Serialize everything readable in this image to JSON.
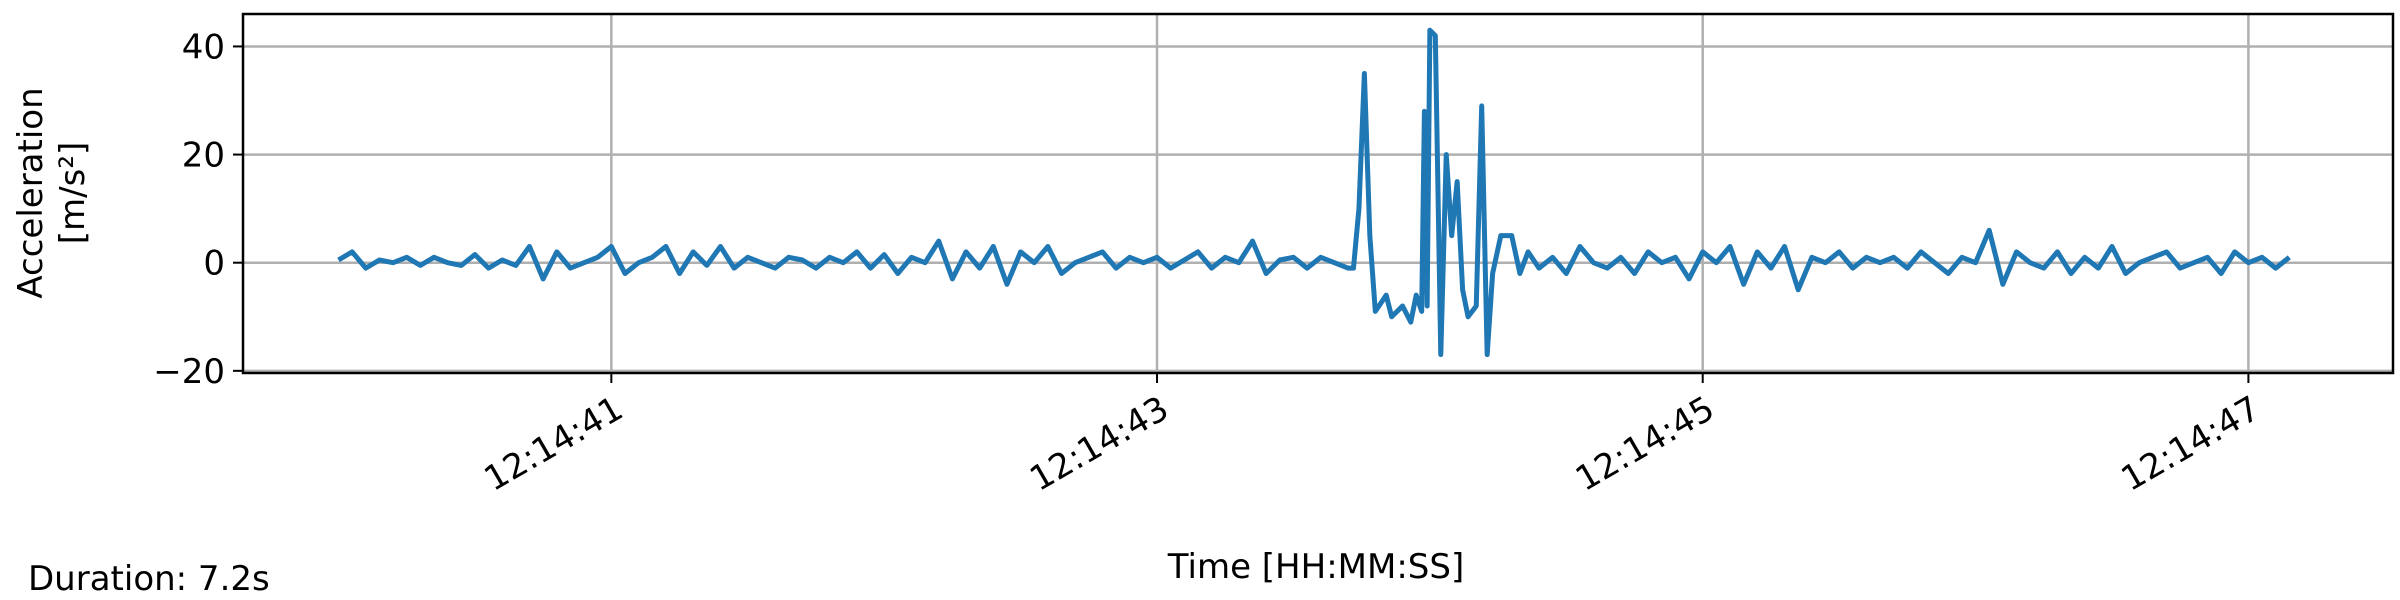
{
  "chart_data": {
    "type": "line",
    "xlabel": "Time [HH:MM:SS]",
    "ylabel_lines": [
      "Acceleration",
      "[m/s²]"
    ],
    "footer": "Duration: 7.2s",
    "color": "#1f77b4",
    "grid": true,
    "xlim": [
      "12:14:39.65",
      "12:14:47.53"
    ],
    "xticks": [
      "12:14:41",
      "12:14:43",
      "12:14:45",
      "12:14:47"
    ],
    "ylim": [
      -20.4,
      46
    ],
    "yticks": [
      {
        "value": -20,
        "label": "−20"
      },
      0,
      20,
      40
    ],
    "x": [
      "12:14:40.00",
      "12:14:40.05",
      "12:14:40.10",
      "12:14:40.15",
      "12:14:40.20",
      "12:14:40.25",
      "12:14:40.30",
      "12:14:40.35",
      "12:14:40.40",
      "12:14:40.45",
      "12:14:40.50",
      "12:14:40.55",
      "12:14:40.60",
      "12:14:40.65",
      "12:14:40.70",
      "12:14:40.75",
      "12:14:40.80",
      "12:14:40.85",
      "12:14:40.90",
      "12:14:40.95",
      "12:14:41.00",
      "12:14:41.05",
      "12:14:41.10",
      "12:14:41.15",
      "12:14:41.20",
      "12:14:41.25",
      "12:14:41.30",
      "12:14:41.35",
      "12:14:41.40",
      "12:14:41.45",
      "12:14:41.50",
      "12:14:41.55",
      "12:14:41.60",
      "12:14:41.65",
      "12:14:41.70",
      "12:14:41.75",
      "12:14:41.80",
      "12:14:41.85",
      "12:14:41.90",
      "12:14:41.95",
      "12:14:42.00",
      "12:14:42.05",
      "12:14:42.10",
      "12:14:42.15",
      "12:14:42.20",
      "12:14:42.25",
      "12:14:42.30",
      "12:14:42.35",
      "12:14:42.40",
      "12:14:42.45",
      "12:14:42.50",
      "12:14:42.55",
      "12:14:42.60",
      "12:14:42.65",
      "12:14:42.70",
      "12:14:42.75",
      "12:14:42.80",
      "12:14:42.85",
      "12:14:42.90",
      "12:14:42.95",
      "12:14:43.00",
      "12:14:43.05",
      "12:14:43.10",
      "12:14:43.15",
      "12:14:43.20",
      "12:14:43.25",
      "12:14:43.30",
      "12:14:43.35",
      "12:14:43.40",
      "12:14:43.45",
      "12:14:43.50",
      "12:14:43.55",
      "12:14:43.60",
      "12:14:43.65",
      "12:14:43.70",
      "12:14:43.72",
      "12:14:43.74",
      "12:14:43.76",
      "12:14:43.78",
      "12:14:43.80",
      "12:14:43.84",
      "12:14:43.86",
      "12:14:43.90",
      "12:14:43.93",
      "12:14:43.95",
      "12:14:43.97",
      "12:14:43.98",
      "12:14:43.99",
      "12:14:44.00",
      "12:14:44.02",
      "12:14:44.04",
      "12:14:44.06",
      "12:14:44.08",
      "12:14:44.10",
      "12:14:44.12",
      "12:14:44.14",
      "12:14:44.17",
      "12:14:44.19",
      "12:14:44.21",
      "12:14:44.23",
      "12:14:44.26",
      "12:14:44.30",
      "12:14:44.33",
      "12:14:44.36",
      "12:14:44.40",
      "12:14:44.45",
      "12:14:44.50",
      "12:14:44.55",
      "12:14:44.60",
      "12:14:44.65",
      "12:14:44.70",
      "12:14:44.75",
      "12:14:44.80",
      "12:14:44.85",
      "12:14:44.90",
      "12:14:44.95",
      "12:14:45.00",
      "12:14:45.05",
      "12:14:45.10",
      "12:14:45.15",
      "12:14:45.20",
      "12:14:45.25",
      "12:14:45.30",
      "12:14:45.35",
      "12:14:45.40",
      "12:14:45.45",
      "12:14:45.50",
      "12:14:45.55",
      "12:14:45.60",
      "12:14:45.65",
      "12:14:45.70",
      "12:14:45.75",
      "12:14:45.80",
      "12:14:45.85",
      "12:14:45.90",
      "12:14:45.95",
      "12:14:46.00",
      "12:14:46.05",
      "12:14:46.10",
      "12:14:46.15",
      "12:14:46.20",
      "12:14:46.25",
      "12:14:46.30",
      "12:14:46.35",
      "12:14:46.40",
      "12:14:46.45",
      "12:14:46.50",
      "12:14:46.55",
      "12:14:46.60",
      "12:14:46.65",
      "12:14:46.70",
      "12:14:46.75",
      "12:14:46.80",
      "12:14:46.85",
      "12:14:46.90",
      "12:14:46.95",
      "12:14:47.00",
      "12:14:47.05",
      "12:14:47.10",
      "12:14:47.15"
    ],
    "values": [
      0.5,
      2,
      -1,
      0.5,
      0,
      1,
      -0.5,
      1,
      0,
      -0.5,
      1.5,
      -1,
      0.5,
      -0.5,
      3,
      -3,
      2,
      -1,
      0,
      1,
      3,
      -2,
      0,
      1,
      3,
      -2,
      2,
      -0.5,
      3,
      -1,
      1,
      0,
      -1,
      1,
      0.5,
      -1,
      1,
      0,
      2,
      -1,
      1.5,
      -2,
      1,
      0,
      4,
      -3,
      2,
      -1,
      3,
      -4,
      2,
      0,
      3,
      -2,
      0,
      1,
      2,
      -1,
      1,
      0,
      1,
      -1,
      0.5,
      2,
      -1,
      1,
      0,
      4,
      -2,
      0.5,
      1,
      -1,
      1,
      0,
      -1,
      -1,
      10,
      35,
      5,
      -9,
      -6,
      -10,
      -8,
      -11,
      -6,
      -9,
      28,
      -8,
      43,
      42,
      -17,
      20,
      5,
      15,
      -5,
      -10,
      -8,
      29,
      -17,
      -2,
      5,
      5,
      -2,
      2,
      -1,
      1,
      -2,
      3,
      0,
      -1,
      1,
      -2,
      2,
      0,
      1,
      -3,
      2,
      0,
      3,
      -4,
      2,
      -1,
      3,
      -5,
      1,
      0,
      2,
      -1,
      1,
      0,
      1,
      -1,
      2,
      0,
      -2,
      1,
      0,
      6,
      -4,
      2,
      0,
      -1,
      2,
      -2,
      1,
      -1,
      3,
      -2,
      0,
      1,
      2,
      -1,
      0,
      1,
      -2,
      2,
      0,
      1,
      -1,
      1
    ]
  }
}
